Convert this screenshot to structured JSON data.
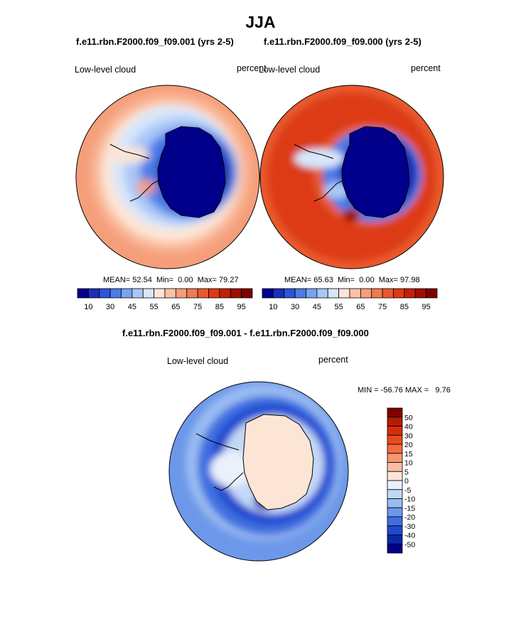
{
  "figure": {
    "title": "JJA",
    "panels": [
      {
        "title": "f.e11.rbn.F2000.f09_f09.001 (yrs 2-5)",
        "variable": "Low-level cloud",
        "units": "percent",
        "mean_label": "MEAN=",
        "mean": "52.54",
        "min_label": "Min=",
        "min": "0.00",
        "max_label": "Max=",
        "max": "79.27"
      },
      {
        "title": "f.e11.rbn.F2000.f09_f09.000 (yrs 2-5)",
        "variable": "Low-level cloud",
        "units": "percent",
        "mean_label": "MEAN=",
        "mean": "65.63",
        "min_label": "Min=",
        "min": "0.00",
        "max_label": "Max=",
        "max": "97.98"
      }
    ],
    "difference": {
      "title": "f.e11.rbn.F2000.f09_f09.001 - f.e11.rbn.F2000.f09_f09.000",
      "variable": "Low-level cloud",
      "units": "percent",
      "minmax_text": "MIN = -56.76 MAX =   9.76"
    },
    "colorbar_abs": {
      "colors": [
        "#00008b",
        "#1a2fb4",
        "#2b54d6",
        "#4b7be6",
        "#7aa3f0",
        "#a9c6f7",
        "#d6e6fb",
        "#fde5d6",
        "#f9c2a5",
        "#f59e7a",
        "#ef7a52",
        "#e85a2e",
        "#dc3a12",
        "#c02008",
        "#a00e02",
        "#800000"
      ],
      "tick_labels": [
        "10",
        "30",
        "45",
        "55",
        "65",
        "75",
        "85",
        "95"
      ]
    },
    "colorbar_diff": {
      "colors": [
        "#800000",
        "#b51a06",
        "#d62e0d",
        "#eb4a1e",
        "#f36a43",
        "#f8946f",
        "#fbbea2",
        "#fde5d6",
        "#eaf1fb",
        "#c3d8f7",
        "#99bbf2",
        "#6d98ea",
        "#3f6fe0",
        "#1f49cf",
        "#0d27a8",
        "#00008b"
      ],
      "tick_labels": [
        "50",
        "40",
        "30",
        "20",
        "15",
        "10",
        "5",
        "0",
        "-5",
        "-10",
        "-15",
        "-20",
        "-30",
        "-40",
        "-50"
      ]
    }
  }
}
